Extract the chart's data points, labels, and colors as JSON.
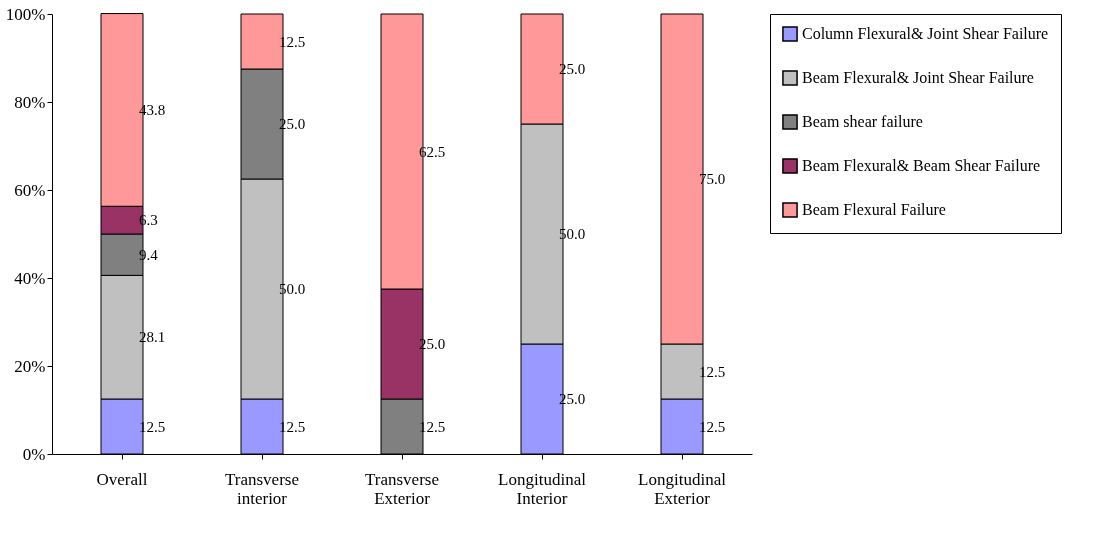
{
  "chart_data": {
    "type": "bar",
    "stacked": true,
    "categories": [
      "Overall",
      "Transverse interior",
      "Transverse Exterior",
      "Longitudinal Interior",
      "Longitudinal Exterior"
    ],
    "series": [
      {
        "name": "Column Flexural& Joint Shear Failure",
        "color": "#9999ff",
        "values": [
          12.5,
          12.5,
          0,
          25.0,
          12.5
        ],
        "value_labels": [
          "12.5",
          "12.5",
          null,
          "25.0",
          "12.5"
        ]
      },
      {
        "name": "Beam Flexural& Joint Shear Failure",
        "color": "#c0c0c0",
        "values": [
          28.1,
          50.0,
          0,
          50.0,
          12.5
        ],
        "value_labels": [
          "28.1",
          "50.0",
          null,
          "50.0",
          "12.5"
        ]
      },
      {
        "name": "Beam shear failure",
        "color": "#808080",
        "values": [
          9.4,
          25.0,
          12.5,
          0,
          0
        ],
        "value_labels": [
          "9.4",
          "25.0",
          "12.5",
          null,
          null
        ]
      },
      {
        "name": "Beam Flexural& Beam Shear Failure",
        "color": "#993366",
        "values": [
          6.3,
          0,
          25.0,
          0,
          0
        ],
        "value_labels": [
          "6.3",
          null,
          "25.0",
          null,
          null
        ]
      },
      {
        "name": "Beam Flexural Failure",
        "color": "#ff9999",
        "values": [
          43.8,
          12.5,
          62.5,
          25.0,
          75.0
        ],
        "value_labels": [
          "43.8",
          "12.5",
          "62.5",
          "25.0",
          "75.0"
        ]
      }
    ],
    "ylim": [
      0,
      100
    ],
    "yticks": [
      {
        "value": 0,
        "label": "0%"
      },
      {
        "value": 20,
        "label": "20%"
      },
      {
        "value": 40,
        "label": "40%"
      },
      {
        "value": 60,
        "label": "60%"
      },
      {
        "value": 80,
        "label": "80%"
      },
      {
        "value": 100,
        "label": "100%"
      }
    ],
    "grid": false,
    "legend": "right"
  }
}
